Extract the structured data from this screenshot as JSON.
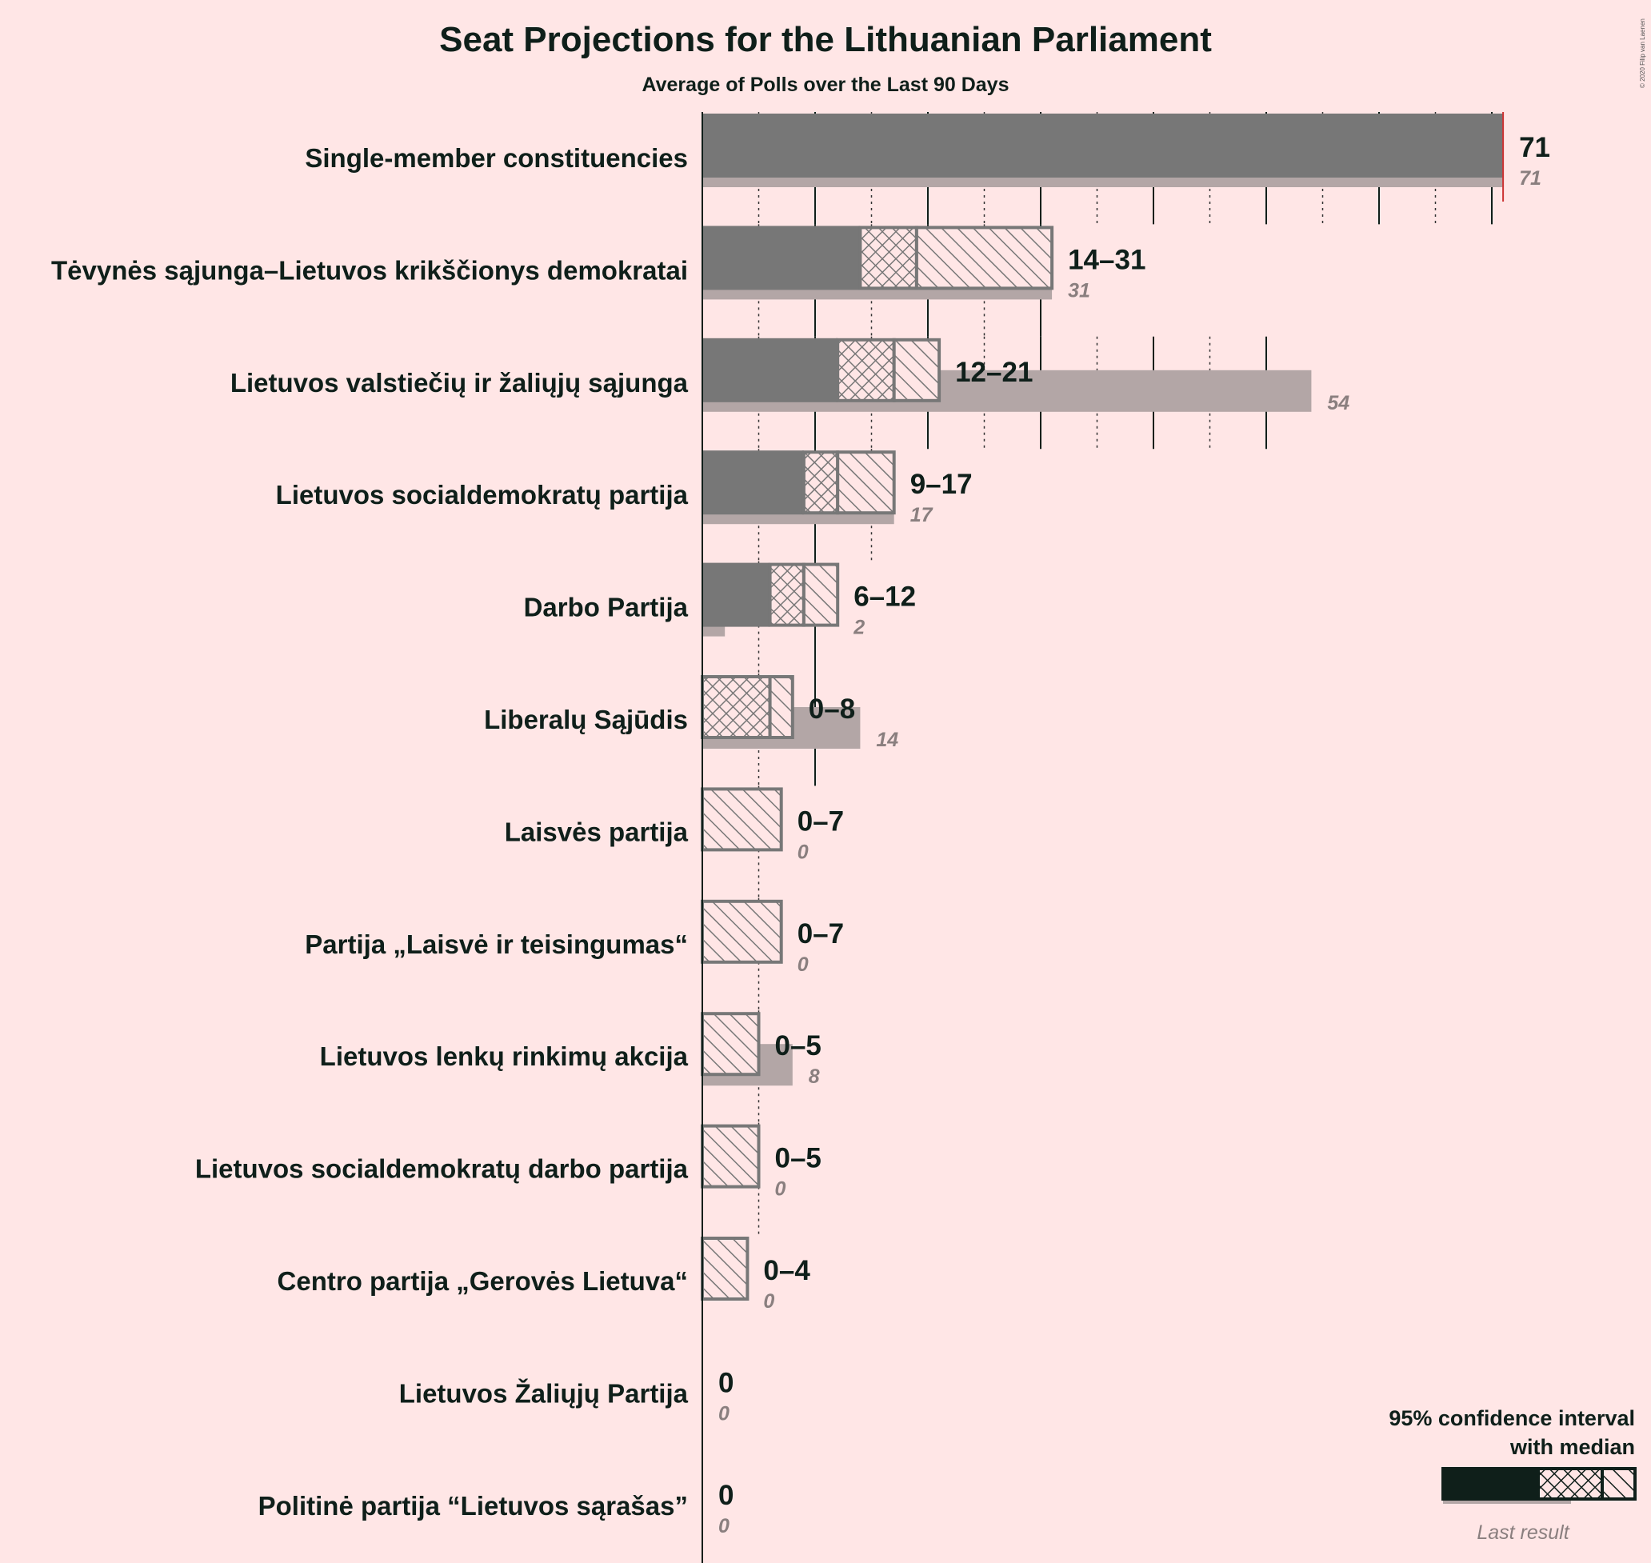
{
  "chart_data": {
    "type": "bar",
    "title": "Seat Projections for the Lithuanian Parliament",
    "subtitle": "Average of Polls over the Last 90 Days",
    "xlim": [
      0,
      71
    ],
    "majority_line": 71,
    "major_gridline_step": 10,
    "minor_gridline_step": 5,
    "categories": [
      "Single-member constituencies",
      "Tėvynės sąjunga–Lietuvos krikščionys demokratai",
      "Lietuvos valstiečių ir žaliųjų sąjunga",
      "Lietuvos socialdemokratų partija",
      "Darbo Partija",
      "Liberalų Sąjūdis",
      "Laisvės partija",
      "Partija „Laisvė ir teisingumas“",
      "Lietuvos lenkų rinkimų akcija",
      "Lietuvos socialdemokratų darbo partija",
      "Centro partija „Gerovės Lietuva“",
      "Lietuvos Žaliųjų Partija",
      "Politinė partija “Lietuvos sąrašas”"
    ],
    "series": [
      {
        "name": "95% confidence interval with median",
        "low": [
          71,
          14,
          12,
          9,
          6,
          0,
          0,
          0,
          0,
          0,
          0,
          0,
          0
        ],
        "q_low": [
          71,
          14,
          12,
          9,
          6,
          0,
          0,
          0,
          0,
          0,
          0,
          0,
          0
        ],
        "median": [
          71,
          19,
          17,
          12,
          9,
          6,
          0,
          0,
          0,
          0,
          0,
          0,
          0
        ],
        "high": [
          71,
          31,
          21,
          17,
          12,
          8,
          7,
          7,
          5,
          5,
          4,
          0,
          0
        ]
      },
      {
        "name": "Last result",
        "values": [
          71,
          31,
          54,
          17,
          2,
          14,
          0,
          0,
          8,
          0,
          0,
          0,
          0
        ]
      }
    ],
    "range_labels": [
      "71",
      "14–31",
      "12–21",
      "9–17",
      "6–12",
      "0–8",
      "0–7",
      "0–7",
      "0–5",
      "0–5",
      "0–4",
      "0",
      "0"
    ],
    "last_labels": [
      "71",
      "31",
      "54",
      "17",
      "2",
      "14",
      "0",
      "0",
      "8",
      "0",
      "0",
      "0",
      "0"
    ]
  },
  "legend": {
    "line1": "95% confidence interval",
    "line2": "with median",
    "last_result": "Last result"
  },
  "copyright": "© 2020 Filip van Laenen",
  "colors": {
    "background": "#ffe6e6",
    "bar": "#777777",
    "hatch": "#777777",
    "last_result": "#b3a6a6",
    "majority": "#cc3333",
    "legend_bar": "#0f1f1a",
    "text": "#0f1f1a"
  }
}
